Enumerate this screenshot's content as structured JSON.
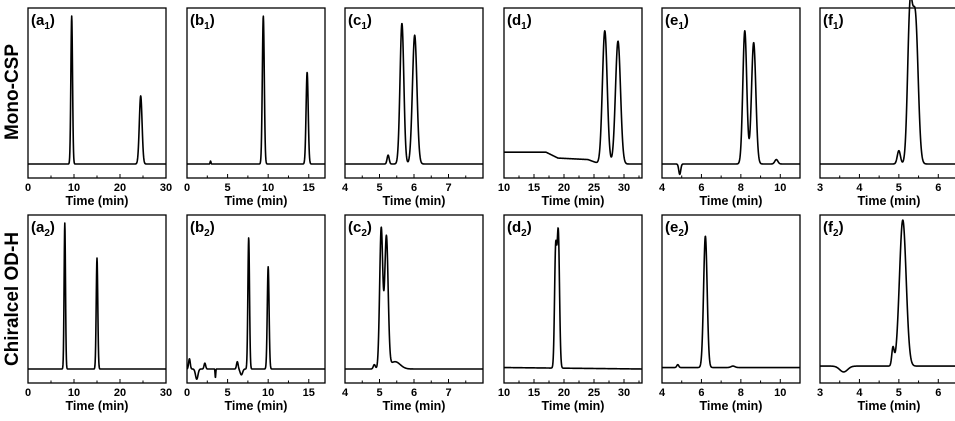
{
  "chart_data": {
    "type": "line",
    "title": "",
    "rows": [
      {
        "label": "Mono-CSP"
      },
      {
        "label": "Chiralcel OD-H"
      }
    ],
    "xlabel": "Time (min)",
    "ylabel": "",
    "panels": [
      {
        "letter": "a",
        "index": "1",
        "row": 0,
        "xlim": [
          0,
          30
        ],
        "xticks": [
          0,
          10,
          20,
          30
        ],
        "baseline": [
          [
            0,
            0
          ]
        ],
        "peaks": [
          [
            9.5,
            1.0,
            0.18
          ],
          [
            24.5,
            0.46,
            0.3
          ]
        ]
      },
      {
        "letter": "b",
        "index": "1",
        "row": 0,
        "xlim": [
          0,
          17
        ],
        "xticks": [
          0,
          5,
          10,
          15
        ],
        "baseline": [
          [
            0,
            0
          ]
        ],
        "peaks": [
          [
            2.9,
            0.02,
            0.05
          ],
          [
            9.4,
            1.0,
            0.12
          ],
          [
            14.8,
            0.62,
            0.13
          ]
        ]
      },
      {
        "letter": "c",
        "index": "1",
        "row": 0,
        "xlim": [
          4,
          8
        ],
        "xticks": [
          4,
          5,
          6,
          7
        ],
        "baseline": [
          [
            4,
            0
          ]
        ],
        "peaks": [
          [
            5.25,
            0.06,
            0.03
          ],
          [
            5.65,
            0.95,
            0.055
          ],
          [
            6.02,
            0.87,
            0.065
          ]
        ]
      },
      {
        "letter": "d",
        "index": "1",
        "row": 0,
        "xlim": [
          10,
          33
        ],
        "xticks": [
          10,
          15,
          20,
          25,
          30
        ],
        "baseline": [
          [
            10,
            0.08
          ],
          [
            17,
            0.08
          ],
          [
            19,
            0.04
          ],
          [
            24,
            0.03
          ],
          [
            26,
            0
          ]
        ],
        "peaks": [
          [
            26.8,
            0.9,
            0.4
          ],
          [
            29.0,
            0.83,
            0.42
          ]
        ]
      },
      {
        "letter": "e",
        "index": "1",
        "row": 0,
        "xlim": [
          4,
          11
        ],
        "xticks": [
          4,
          6,
          8,
          10
        ],
        "baseline": [
          [
            4,
            0
          ]
        ],
        "peaks": [
          [
            4.9,
            -0.07,
            0.05
          ],
          [
            8.2,
            0.9,
            0.1
          ],
          [
            8.65,
            0.82,
            0.11
          ],
          [
            9.8,
            0.03,
            0.08
          ]
        ]
      },
      {
        "letter": "f",
        "index": "1",
        "row": 0,
        "xlim": [
          3,
          6.5
        ],
        "xticks": [
          3,
          4,
          5,
          6
        ],
        "baseline": [
          [
            3,
            0
          ]
        ],
        "peaks": [
          [
            5.0,
            0.09,
            0.04
          ],
          [
            5.28,
            0.97,
            0.06
          ],
          [
            5.42,
            0.97,
            0.07
          ]
        ]
      },
      {
        "letter": "a",
        "index": "2",
        "row": 1,
        "xlim": [
          0,
          30
        ],
        "xticks": [
          0,
          10,
          20,
          30
        ],
        "baseline": [
          [
            0,
            0
          ]
        ],
        "peaks": [
          [
            8.0,
            1.0,
            0.15
          ],
          [
            15.0,
            0.76,
            0.17
          ]
        ]
      },
      {
        "letter": "b",
        "index": "2",
        "row": 1,
        "xlim": [
          0,
          17
        ],
        "xticks": [
          0,
          5,
          10,
          15
        ],
        "baseline": [
          [
            0,
            0
          ]
        ],
        "peaks": [
          [
            0.3,
            0.07,
            0.1
          ],
          [
            1.2,
            -0.07,
            0.15
          ],
          [
            2.2,
            0.04,
            0.1
          ],
          [
            3.5,
            -0.06,
            0.04
          ],
          [
            6.2,
            0.05,
            0.1
          ],
          [
            6.7,
            -0.04,
            0.15
          ],
          [
            7.6,
            0.9,
            0.1
          ],
          [
            10.0,
            0.7,
            0.11
          ]
        ]
      },
      {
        "letter": "c",
        "index": "2",
        "row": 1,
        "xlim": [
          4,
          8
        ],
        "xticks": [
          4,
          5,
          6,
          7
        ],
        "baseline": [
          [
            4,
            0
          ]
        ],
        "peaks": [
          [
            4.85,
            0.03,
            0.03
          ],
          [
            5.05,
            0.96,
            0.045
          ],
          [
            5.2,
            0.9,
            0.05
          ],
          [
            5.45,
            0.05,
            0.15
          ]
        ]
      },
      {
        "letter": "d",
        "index": "2",
        "row": 1,
        "xlim": [
          10,
          33
        ],
        "xticks": [
          10,
          15,
          20,
          25,
          30
        ],
        "baseline": [
          [
            10,
            0.01
          ],
          [
            33,
            0
          ]
        ],
        "peaks": [
          [
            18.6,
            0.78,
            0.18
          ],
          [
            19.05,
            0.92,
            0.2
          ]
        ]
      },
      {
        "letter": "e",
        "index": "2",
        "row": 1,
        "xlim": [
          4,
          11
        ],
        "xticks": [
          4,
          6,
          8,
          10
        ],
        "baseline": [
          [
            4,
            0.01
          ],
          [
            11,
            0.01
          ]
        ],
        "peaks": [
          [
            4.8,
            0.02,
            0.05
          ],
          [
            6.2,
            0.9,
            0.09
          ],
          [
            7.6,
            0.01,
            0.1
          ]
        ]
      },
      {
        "letter": "f",
        "index": "2",
        "row": 1,
        "xlim": [
          3,
          6.5
        ],
        "xticks": [
          3,
          4,
          5,
          6
        ],
        "baseline": [
          [
            3,
            0.02
          ]
        ],
        "peaks": [
          [
            3.6,
            -0.04,
            0.1
          ],
          [
            4.85,
            0.12,
            0.03
          ],
          [
            5.1,
            1.0,
            0.085
          ]
        ]
      }
    ]
  }
}
